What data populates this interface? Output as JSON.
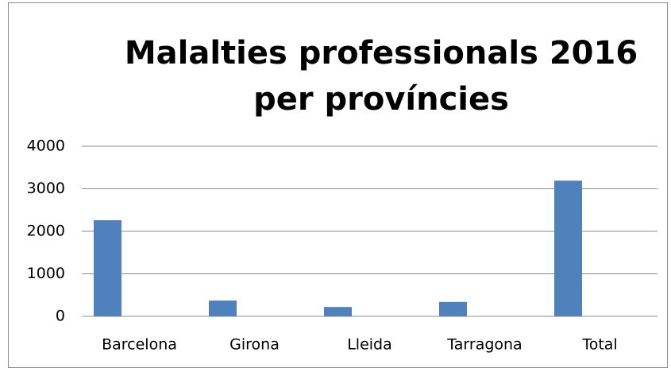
{
  "chart_data": {
    "type": "bar",
    "title": "Malalties professionals 2016 per províncies",
    "categories": [
      "Barcelona",
      "Girona",
      "Lleida",
      "Tarragona",
      "Total"
    ],
    "values": [
      2260,
      370,
      220,
      340,
      3190
    ],
    "color": "#4f81bd",
    "ylim": [
      0,
      4000
    ],
    "yticks": [
      0,
      1000,
      2000,
      3000,
      4000
    ],
    "grid": true
  }
}
